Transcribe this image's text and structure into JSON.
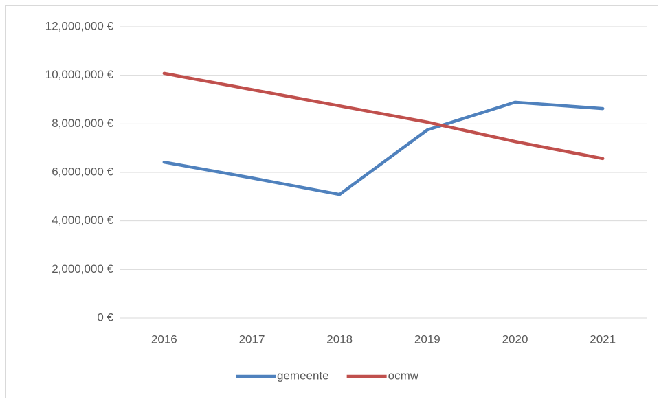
{
  "chart_data": {
    "type": "line",
    "categories": [
      "2016",
      "2017",
      "2018",
      "2019",
      "2020",
      "2021"
    ],
    "series": [
      {
        "name": "gemeente",
        "color": "#4f81bd",
        "values": [
          6420000,
          5770000,
          5090000,
          7750000,
          8890000,
          8630000
        ]
      },
      {
        "name": "ocmw",
        "color": "#c0504d",
        "values": [
          10080000,
          9410000,
          8740000,
          8070000,
          7270000,
          6570000
        ]
      }
    ],
    "ylim": [
      0,
      12000000
    ],
    "yticks": [
      {
        "value": 0,
        "label": "0 €"
      },
      {
        "value": 2000000,
        "label": "2,000,000 €"
      },
      {
        "value": 4000000,
        "label": "4,000,000 €"
      },
      {
        "value": 6000000,
        "label": "6,000,000 €"
      },
      {
        "value": 8000000,
        "label": "8,000,000 €"
      },
      {
        "value": 10000000,
        "label": "10,000,000 €"
      },
      {
        "value": 12000000,
        "label": "12,000,000 €"
      }
    ],
    "grid": true,
    "legend": "bottom"
  }
}
